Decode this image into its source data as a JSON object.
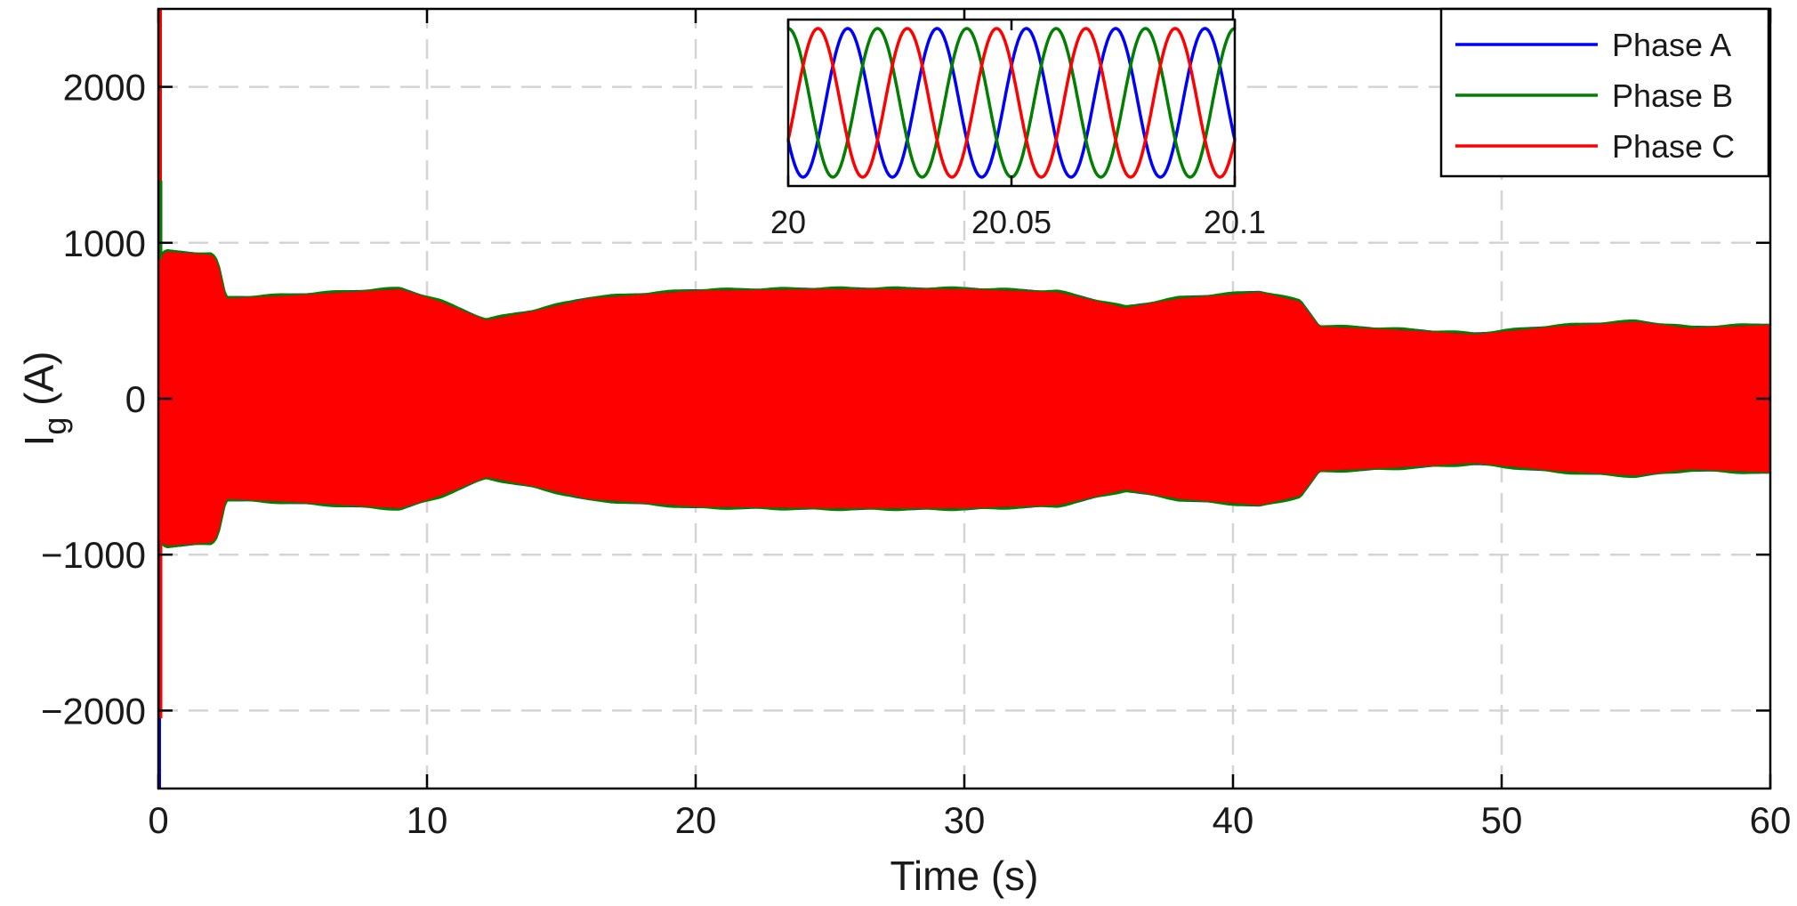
{
  "chart_data": [
    {
      "type": "line",
      "title": "",
      "xlabel": "Time (s)",
      "ylabel": "I",
      "ylabel_subscript": "g",
      "ylabel_unit": " (A)",
      "xlim": [
        0,
        60
      ],
      "ylim": [
        -2500,
        2500
      ],
      "xticks": [
        0,
        10,
        20,
        30,
        40,
        50,
        60
      ],
      "yticks": [
        -2000,
        -1000,
        0,
        1000,
        2000
      ],
      "ytick_labels": [
        "−2000",
        "−1000",
        "0",
        "1000",
        "2000"
      ],
      "grid": true,
      "legend_position": "top-right",
      "series": [
        {
          "name": "Phase A",
          "color": "#0000ff"
        },
        {
          "name": "Phase B",
          "color": "#007f00"
        },
        {
          "name": "Phase C",
          "color": "#ff0000"
        }
      ],
      "envelope": {
        "t": [
          0,
          0.3,
          2,
          2.2,
          2.5,
          5,
          9,
          10.5,
          12.2,
          14,
          16,
          20,
          25,
          30,
          33.5,
          36,
          38,
          41,
          42.5,
          43.2,
          46,
          49,
          52,
          55,
          57,
          60
        ],
        "amplitude": [
          900,
          940,
          920,
          870,
          640,
          660,
          700,
          620,
          500,
          560,
          640,
          690,
          700,
          700,
          680,
          580,
          640,
          680,
          620,
          460,
          440,
          410,
          460,
          490,
          450,
          470
        ]
      },
      "startup_transient": {
        "t": [
          0,
          0.15
        ],
        "min": -2500,
        "max": 2500
      }
    },
    {
      "type": "line",
      "title": "",
      "subtype": "inset",
      "xlim": [
        20,
        20.1
      ],
      "xticks": [
        20,
        20.05,
        20.1
      ],
      "xtick_labels": [
        "20",
        "20.05",
        "20.1"
      ],
      "frequency_hz": 50,
      "series": [
        {
          "name": "Phase A",
          "color": "#0000ff",
          "phase_deg": 120
        },
        {
          "name": "Phase B",
          "color": "#007f00",
          "phase_deg": 0
        },
        {
          "name": "Phase C",
          "color": "#ff0000",
          "phase_deg": -120
        }
      ]
    }
  ]
}
